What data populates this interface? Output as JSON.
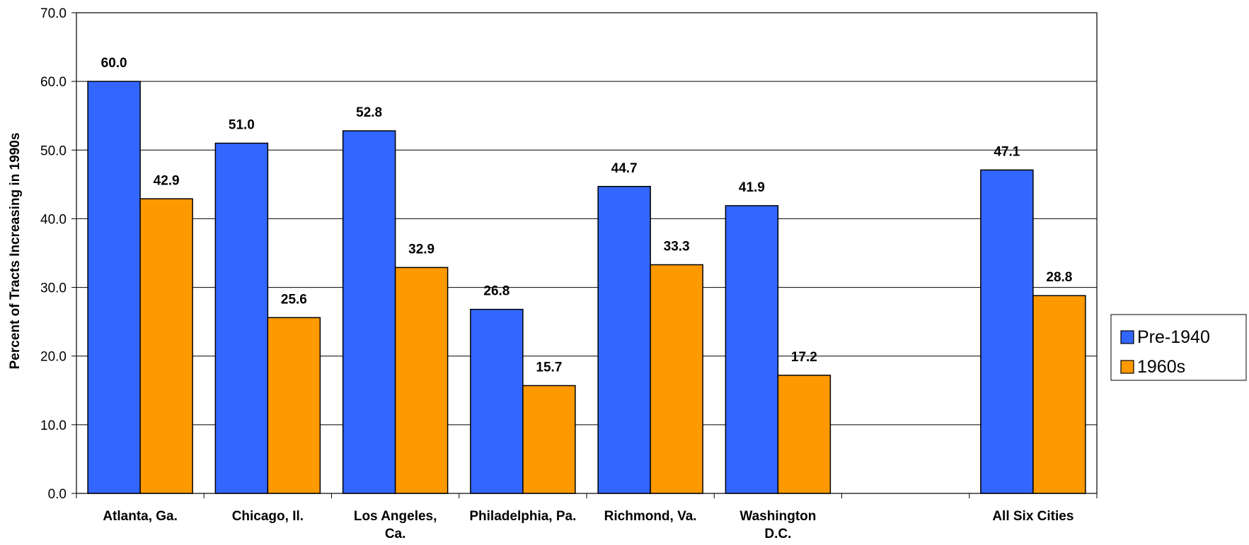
{
  "chart_data": {
    "type": "bar",
    "title": "",
    "xlabel": "",
    "ylabel": "Percent of Tracts Increasing in 1990s",
    "ylim": [
      0,
      70
    ],
    "yticks": [
      "0.0",
      "10.0",
      "20.0",
      "30.0",
      "40.0",
      "50.0",
      "60.0",
      "70.0"
    ],
    "categories": [
      [
        "Atlanta, Ga."
      ],
      [
        "Chicago, Il."
      ],
      [
        "Los Angeles,",
        "Ca."
      ],
      [
        "Philadelphia, Pa."
      ],
      [
        "Richmond, Va."
      ],
      [
        "Washington",
        "D.C."
      ],
      [
        ""
      ],
      [
        "All Six Cities"
      ]
    ],
    "series": [
      {
        "name": "Pre-1940",
        "color": "#3366FF",
        "values": [
          60.0,
          51.0,
          52.8,
          26.8,
          44.7,
          41.9,
          null,
          47.1
        ],
        "labels": [
          "60.0",
          "51.0",
          "52.8",
          "26.8",
          "44.7",
          "41.9",
          "",
          "47.1"
        ]
      },
      {
        "name": "1960s",
        "color": "#FF9900",
        "values": [
          42.9,
          25.6,
          32.9,
          15.7,
          33.3,
          17.2,
          null,
          28.8
        ],
        "labels": [
          "42.9",
          "25.6",
          "32.9",
          "15.7",
          "33.3",
          "17.2",
          "",
          "28.8"
        ]
      }
    ],
    "grid": true,
    "legend_position": "right"
  }
}
